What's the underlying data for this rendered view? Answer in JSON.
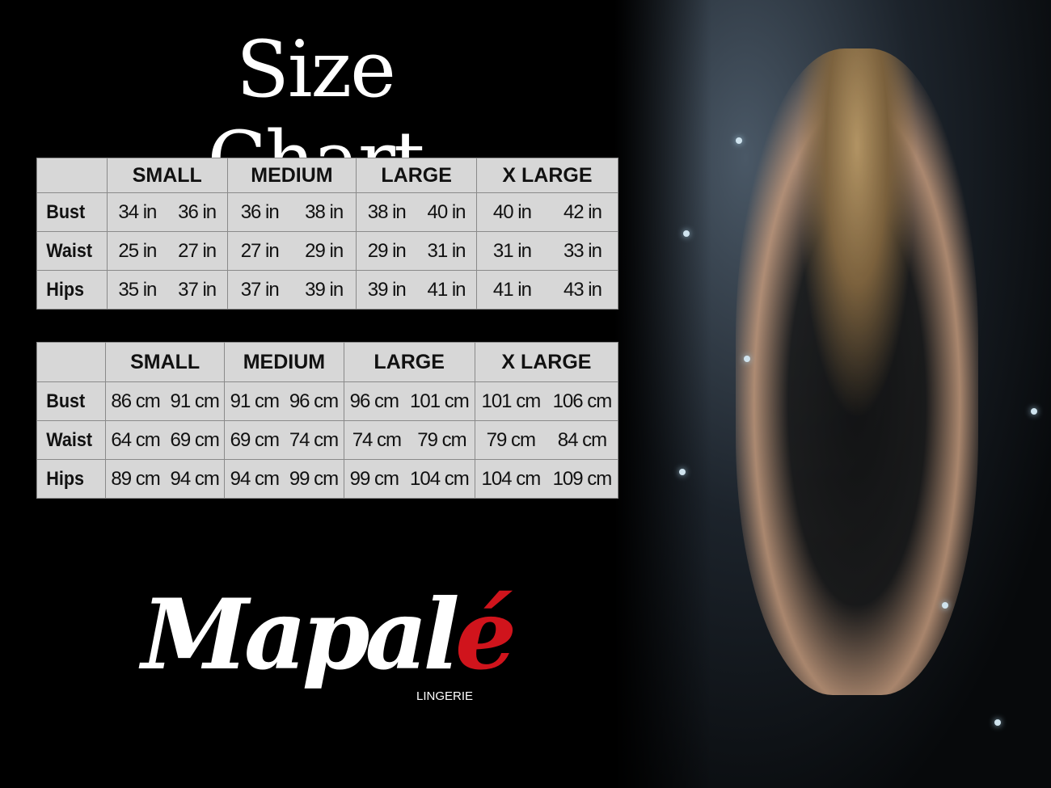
{
  "title": "Size Chart",
  "sizes": [
    "SMALL",
    "MEDIUM",
    "LARGE",
    "X LARGE"
  ],
  "inches_table": {
    "rows": [
      {
        "label": "Bust",
        "values": [
          "34 in",
          "36 in",
          "36 in",
          "38 in",
          "38 in",
          "40 in",
          "40 in",
          "42 in"
        ]
      },
      {
        "label": "Waist",
        "values": [
          "25 in",
          "27 in",
          "27 in",
          "29 in",
          "29 in",
          "31 in",
          "31 in",
          "33 in"
        ]
      },
      {
        "label": "Hips",
        "values": [
          "35 in",
          "37 in",
          "37 in",
          "39 in",
          "39 in",
          "41 in",
          "41 in",
          "43 in"
        ]
      }
    ]
  },
  "cm_table": {
    "rows": [
      {
        "label": "Bust",
        "values": [
          "86 cm",
          "91 cm",
          "91 cm",
          "96 cm",
          "96 cm",
          "101 cm",
          "101 cm",
          "106 cm"
        ]
      },
      {
        "label": "Waist",
        "values": [
          "64 cm",
          "69 cm",
          "69 cm",
          "74 cm",
          "74 cm",
          "79 cm",
          "79 cm",
          "84 cm"
        ]
      },
      {
        "label": "Hips",
        "values": [
          "89 cm",
          "94 cm",
          "94 cm",
          "99 cm",
          "99 cm",
          "104 cm",
          "104 cm",
          "109 cm"
        ]
      }
    ]
  },
  "logo": {
    "text": "Mapalé",
    "main": "Mapal",
    "accent": "é",
    "subtitle": "LINGERIE",
    "accent_color": "#d0141c"
  },
  "table_bg": "#d7d7d7"
}
